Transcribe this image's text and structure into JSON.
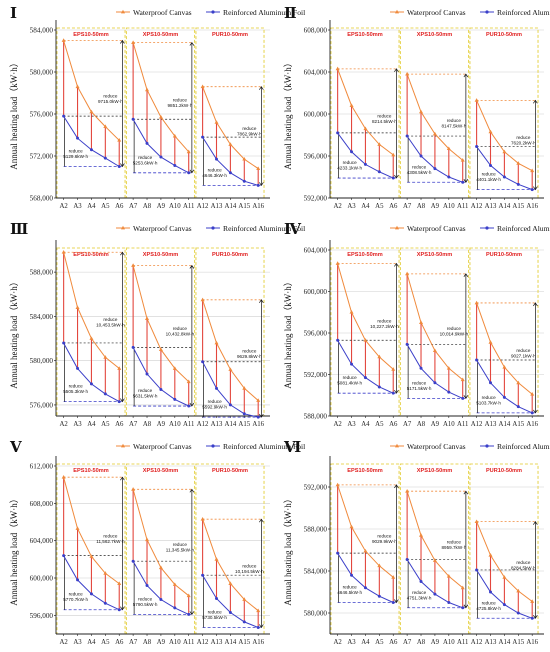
{
  "legend": {
    "waterproof": "Waterproof Canvas",
    "aluminum": "Reinforced Aluminum Foil"
  },
  "y_axis_label": "Annual heating load（kW·h）",
  "x_categories": [
    "A2",
    "A3",
    "A4",
    "A5",
    "A6",
    "A7",
    "A8",
    "A9",
    "A10",
    "A11",
    "A12",
    "A13",
    "A14",
    "A15",
    "A16"
  ],
  "section_titles": [
    "EPS10-50mm",
    "XPS10-50mm",
    "PUR10-50mm"
  ],
  "reduce_word": "reduce",
  "colors": {
    "waterproof": "#f08a3c",
    "aluminum": "#3b3fc9",
    "bracket": "#e3473e",
    "section_box": "#e8d65a",
    "section_title": "#e02020",
    "dashed_ref": "#3b3fc9"
  },
  "chart_data": [
    {
      "type": "line",
      "panel": "I",
      "ylim": [
        568000,
        584000
      ],
      "yticks": [
        568000,
        572000,
        576000,
        580000,
        584000
      ],
      "series": [
        {
          "name": "Waterproof Canvas",
          "values": [
            583000,
            578600,
            576200,
            574800,
            573500,
            582800,
            578300,
            575700,
            573900,
            572400,
            578600,
            575200,
            573100,
            571700,
            570800
          ]
        },
        {
          "name": "Reinforced Aluminum Foil",
          "values": [
            575800,
            573700,
            572600,
            571800,
            571000,
            575500,
            573200,
            571900,
            571100,
            570400,
            573800,
            571700,
            570400,
            569600,
            569200
          ]
        }
      ],
      "annotations": [
        {
          "section": "EPS10-50mm",
          "big": "9715.0kW·h",
          "small": "5129.6kW·h"
        },
        {
          "section": "XPS10-50mm",
          "big": "9851.2kW·h",
          "small": "5253.6kW·h"
        },
        {
          "section": "PUR10-50mm",
          "big": "7862.9kW·h",
          "small": "4646.3kW·h"
        }
      ]
    },
    {
      "type": "line",
      "panel": "II",
      "ylim": [
        592000,
        608000
      ],
      "yticks": [
        592000,
        596000,
        600000,
        604000,
        608000
      ],
      "series": [
        {
          "name": "Waterproof Canvas",
          "values": [
            604300,
            600800,
            598600,
            597100,
            596100,
            603800,
            600200,
            598100,
            596700,
            595600,
            601300,
            598300,
            596400,
            595300,
            594600
          ]
        },
        {
          "name": "Reinforced Aluminum Foil",
          "values": [
            598200,
            596400,
            595200,
            594500,
            593900,
            597900,
            596000,
            594800,
            594000,
            593500,
            596900,
            595100,
            594000,
            593300,
            592800
          ]
        }
      ],
      "annotations": [
        {
          "section": "EPS10-50mm",
          "big": "8214.5kW·h",
          "small": "4233.1kW·h"
        },
        {
          "section": "XPS10-50mm",
          "big": "8147.5kW·h",
          "small": "4308.5kW·h"
        },
        {
          "section": "PUR10-50mm",
          "big": "7620.2kW·h",
          "small": "4401.1kW·h"
        }
      ]
    },
    {
      "type": "line",
      "panel": "III",
      "ylim": [
        575000,
        590000
      ],
      "yticks": [
        576000,
        580000,
        584000,
        588000
      ],
      "series": [
        {
          "name": "Waterproof Canvas",
          "values": [
            589800,
            584800,
            582000,
            580300,
            579300,
            588600,
            583800,
            581000,
            579300,
            578100,
            585500,
            581600,
            579200,
            577500,
            576400
          ]
        },
        {
          "name": "Reinforced Aluminum Foil",
          "values": [
            581600,
            579300,
            577900,
            577000,
            576300,
            581200,
            578800,
            577400,
            576500,
            575900,
            579900,
            577500,
            576000,
            575200,
            574900
          ]
        }
      ],
      "annotations": [
        {
          "section": "EPS10-50mm",
          "big": "10,453.5kW·h",
          "small": "5505.3kW·h"
        },
        {
          "section": "XPS10-50mm",
          "big": "10,432.8kW·h",
          "small": "5631.5kW·h"
        },
        {
          "section": "PUR10-50mm",
          "big": "9629.8kW·h",
          "small": "5592.9kW·h"
        }
      ]
    },
    {
      "type": "line",
      "panel": "IV",
      "ylim": [
        588000,
        604000
      ],
      "yticks": [
        588000,
        592000,
        596000,
        600000,
        604000
      ],
      "series": [
        {
          "name": "Waterproof Canvas",
          "values": [
            602700,
            598000,
            595300,
            593700,
            592500,
            601700,
            597000,
            594300,
            592600,
            591500,
            598900,
            595100,
            592700,
            591200,
            590100
          ]
        },
        {
          "name": "Reinforced Aluminum Foil",
          "values": [
            595300,
            593000,
            591700,
            590800,
            590200,
            594900,
            592600,
            591200,
            590300,
            589700,
            593400,
            591200,
            589800,
            588900,
            588300
          ]
        }
      ],
      "annotations": [
        {
          "section": "EPS10-50mm",
          "big": "10,227.2kW·h",
          "small": "5081.4kW·h"
        },
        {
          "section": "XPS10-50mm",
          "big": "10,014.9kW·h",
          "small": "5171.5kW·h"
        },
        {
          "section": "PUR10-50mm",
          "big": "9027.1kW·h",
          "small": "5103.7kW·h"
        }
      ]
    },
    {
      "type": "line",
      "panel": "V",
      "ylim": [
        594000,
        612000
      ],
      "yticks": [
        596000,
        600000,
        604000,
        608000,
        612000
      ],
      "series": [
        {
          "name": "Waterproof Canvas",
          "values": [
            610800,
            605300,
            602300,
            600500,
            599400,
            609500,
            604100,
            601100,
            599300,
            598100,
            606300,
            602000,
            599400,
            597700,
            596500
          ]
        },
        {
          "name": "Reinforced Aluminum Foil",
          "values": [
            602400,
            599800,
            598300,
            597300,
            596600,
            601800,
            599200,
            597700,
            596800,
            596100,
            600300,
            597800,
            596300,
            595300,
            594700
          ]
        }
      ],
      "annotations": [
        {
          "section": "EPS10-50mm",
          "big": "11,562.7kW·h",
          "small": "5770.7kW·h"
        },
        {
          "section": "XPS10-50mm",
          "big": "11,345.5kW·h",
          "small": "5790.5kW·h"
        },
        {
          "section": "PUR10-50mm",
          "big": "10,194.5kW·h",
          "small": "5730.5kW·h"
        }
      ]
    },
    {
      "type": "line",
      "panel": "VI",
      "ylim": [
        578000,
        594000
      ],
      "yticks": [
        580000,
        584000,
        588000,
        592000
      ],
      "series": [
        {
          "name": "Waterproof Canvas",
          "values": [
            592200,
            588200,
            585900,
            584500,
            583400,
            591600,
            587400,
            585000,
            583500,
            582400,
            588700,
            585500,
            583400,
            582100,
            581100
          ]
        },
        {
          "name": "Reinforced Aluminum Foil",
          "values": [
            585700,
            583600,
            582400,
            581600,
            581000,
            585100,
            583000,
            581800,
            581000,
            580500,
            584100,
            582000,
            580800,
            580000,
            579500
          ]
        }
      ],
      "annotations": [
        {
          "section": "EPS10-50mm",
          "big": "9029.9kW·h",
          "small": "4646.5kW·h"
        },
        {
          "section": "XPS10-50mm",
          "big": "8959.7kW·h",
          "small": "4751.3kW·h"
        },
        {
          "section": "PUR10-50mm",
          "big": "8284.5kW·h",
          "small": "4725.8kW·h"
        }
      ]
    }
  ]
}
